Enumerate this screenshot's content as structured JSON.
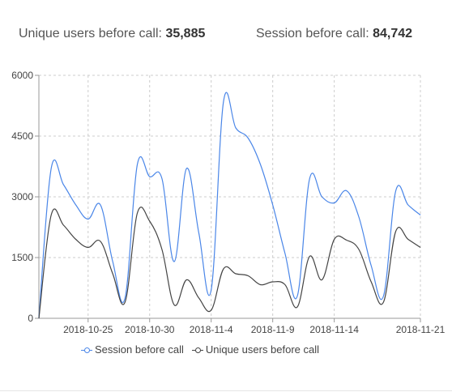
{
  "stats": {
    "users_label": "Unique users before call:",
    "users_value": "35,885",
    "sessions_label": "Session before call:",
    "sessions_value": "84,742"
  },
  "chart_data": {
    "type": "line",
    "title": "",
    "xlabel": "",
    "ylabel": "",
    "ylim": [
      0,
      6000
    ],
    "y_ticks": [
      0,
      1500,
      3000,
      4500,
      6000
    ],
    "y_tick_labels": [
      "0",
      "1500",
      "3000",
      "4500",
      "6000"
    ],
    "x": [
      "2018-10-21",
      "2018-10-22",
      "2018-10-23",
      "2018-10-24",
      "2018-10-25",
      "2018-10-26",
      "2018-10-27",
      "2018-10-28",
      "2018-10-29",
      "2018-10-30",
      "2018-10-31",
      "2018-11-01",
      "2018-11-02",
      "2018-11-03",
      "2018-11-04",
      "2018-11-05",
      "2018-11-06",
      "2018-11-07",
      "2018-11-08",
      "2018-11-09",
      "2018-11-10",
      "2018-11-11",
      "2018-11-12",
      "2018-11-13",
      "2018-11-14",
      "2018-11-15",
      "2018-11-16",
      "2018-11-17",
      "2018-11-18",
      "2018-11-19",
      "2018-11-20",
      "2018-11-21"
    ],
    "x_tick_labels": [
      "2018-10-25",
      "2018-10-30",
      "2018-11-4",
      "2018-11-9",
      "2018-11-14",
      "2018-11-21"
    ],
    "x_tick_dates": [
      "2018-10-25",
      "2018-10-30",
      "2018-11-04",
      "2018-11-09",
      "2018-11-14",
      "2018-11-21"
    ],
    "grid": true,
    "legend_position": "bottom",
    "series": [
      {
        "name": "Session before call",
        "color": "#4a86e8",
        "values": [
          0,
          3700,
          3300,
          2800,
          2450,
          2800,
          1400,
          500,
          3800,
          3500,
          3450,
          1400,
          3700,
          2100,
          700,
          5350,
          4700,
          4450,
          3800,
          2800,
          1600,
          550,
          3450,
          3000,
          2850,
          3150,
          2500,
          1300,
          550,
          3150,
          2800,
          2550
        ]
      },
      {
        "name": "Unique users before call",
        "color": "#444444",
        "values": [
          0,
          2550,
          2300,
          1950,
          1750,
          1900,
          1100,
          400,
          2600,
          2400,
          1700,
          330,
          950,
          500,
          200,
          1220,
          1100,
          1050,
          830,
          900,
          830,
          280,
          1530,
          950,
          1950,
          1930,
          1700,
          900,
          400,
          2150,
          1950,
          1750
        ]
      }
    ]
  }
}
